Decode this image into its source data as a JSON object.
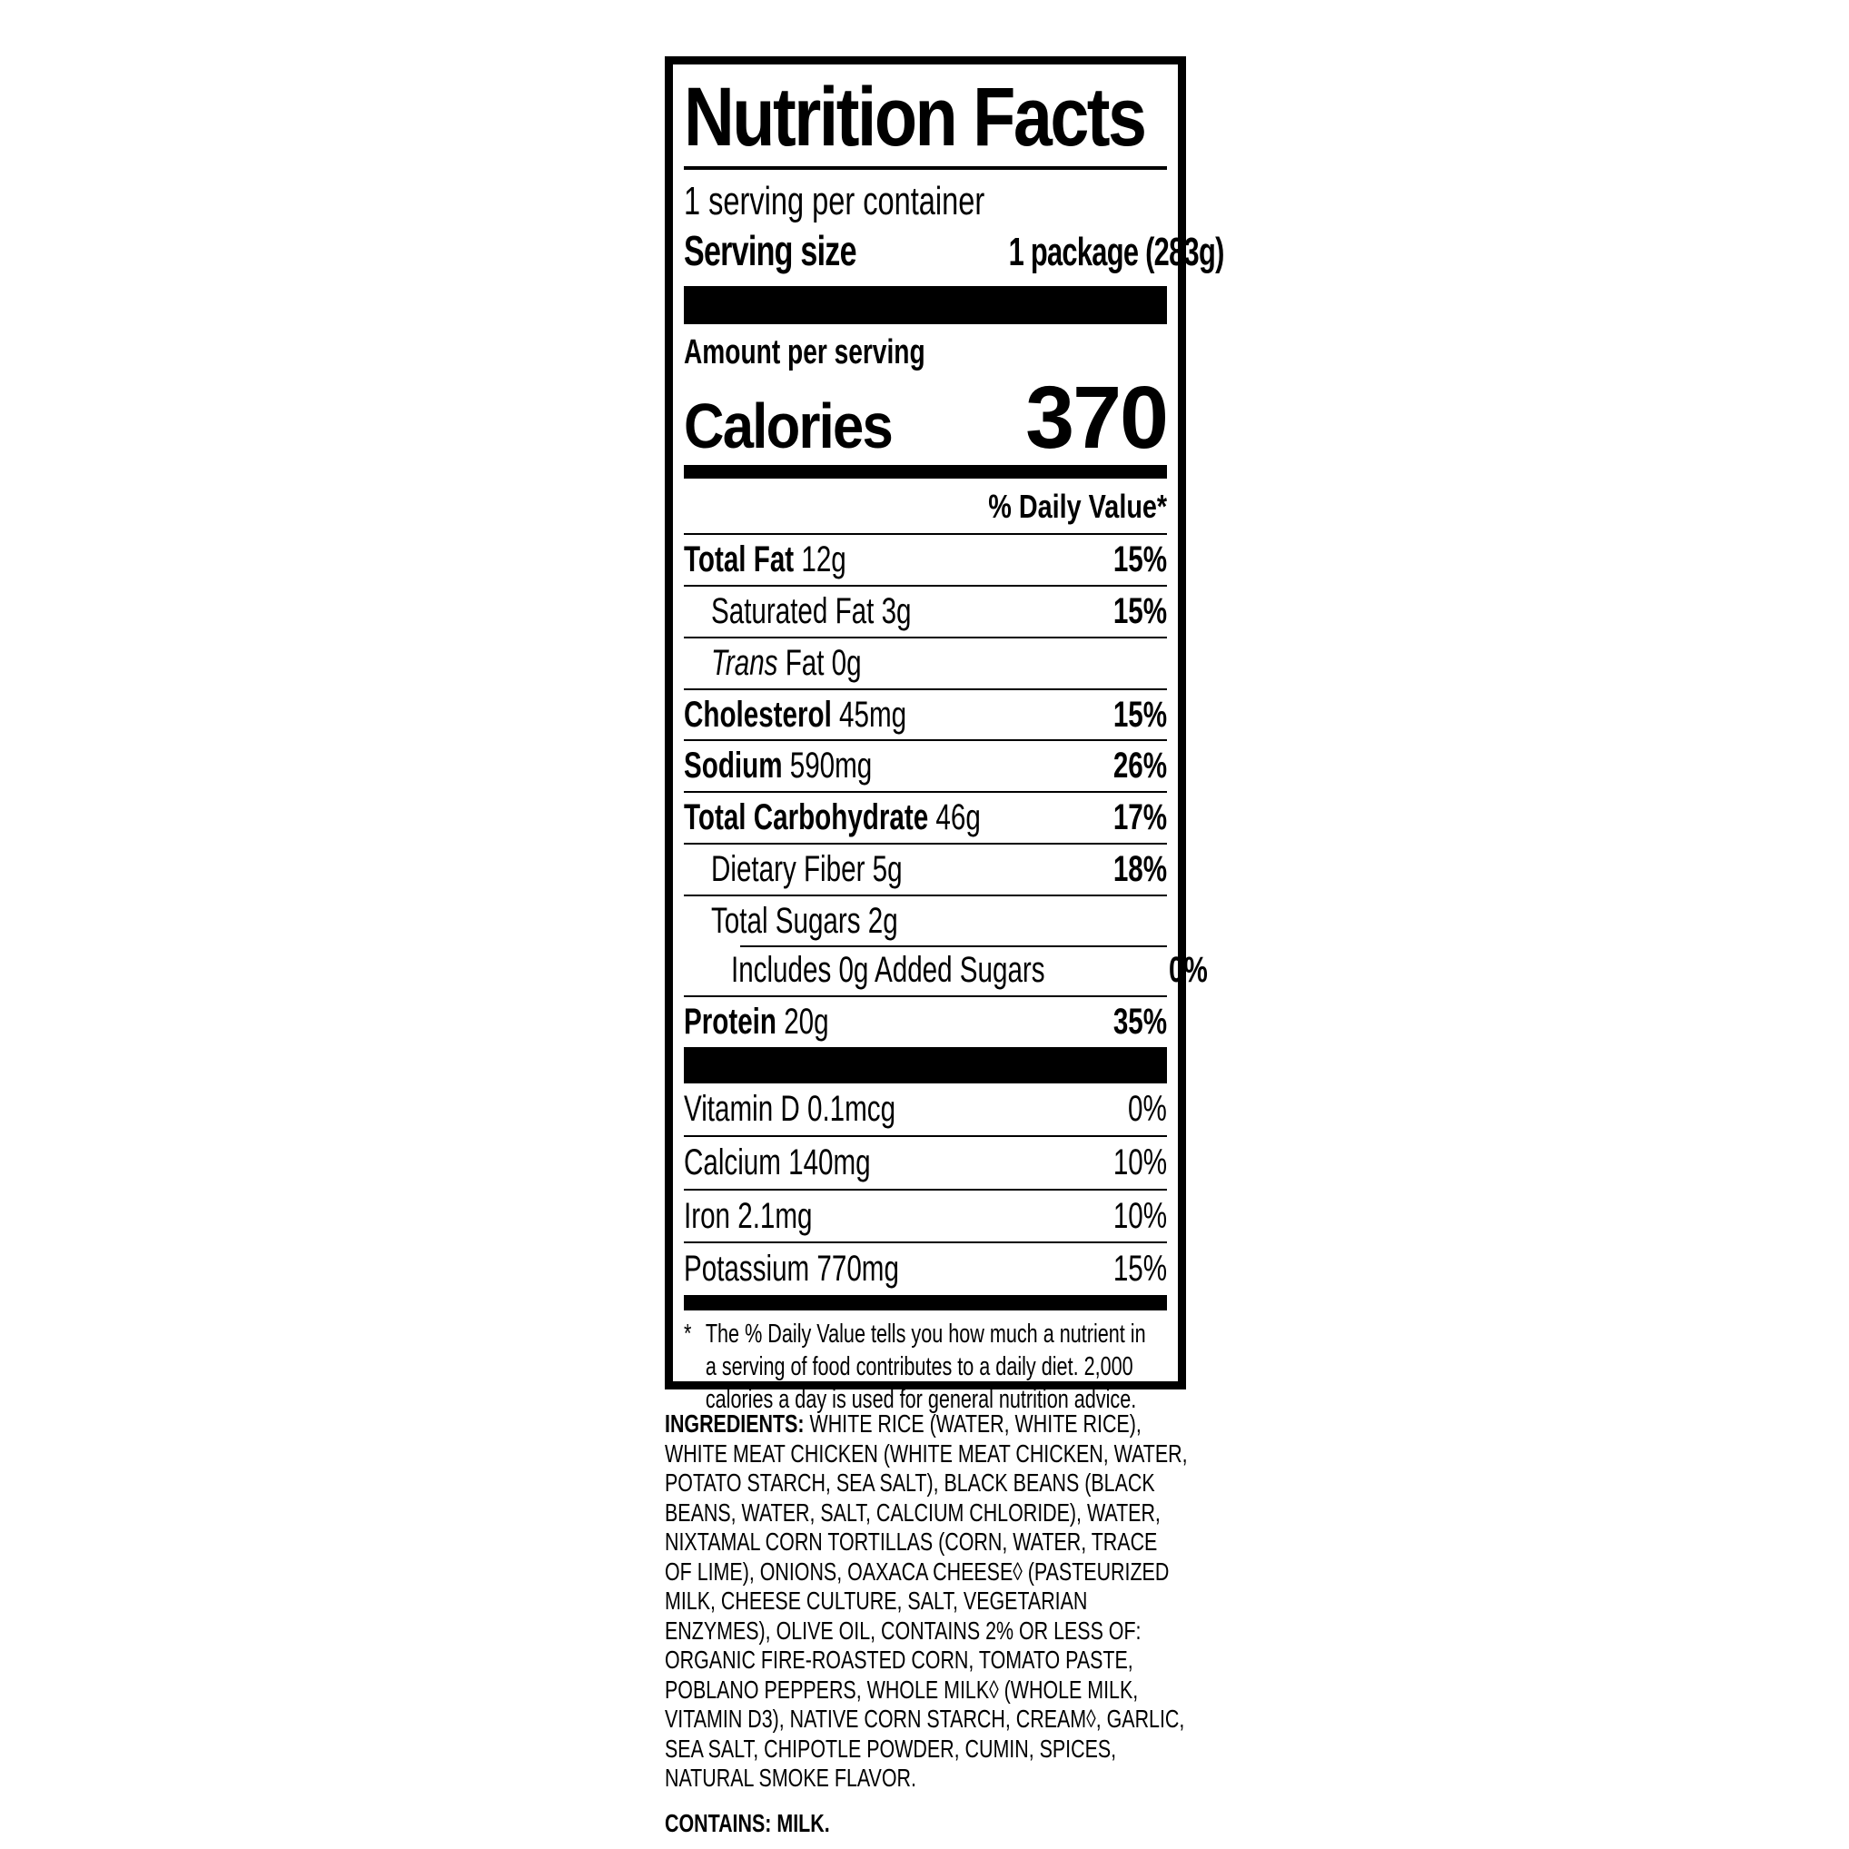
{
  "page": {
    "background": "#ffffff",
    "text_color": "#000000"
  },
  "nutrition_label": {
    "title": "Nutrition Facts",
    "servings_per_container": "1 serving per container",
    "serving_size": {
      "label": "Serving size",
      "value": "1 package (283g)"
    },
    "amount_per_serving": "Amount per serving",
    "calories": {
      "label": "Calories",
      "value": "370"
    },
    "daily_value_header": "% Daily Value*",
    "nutrient_rows": [
      {
        "bold": "Total Fat",
        "regular": " 12g",
        "dv": "15%"
      },
      {
        "bold": "",
        "regular": "Saturated Fat 3g",
        "dv": "15%"
      },
      {
        "italic": "Trans",
        "regular": " Fat 0g",
        "dv": ""
      },
      {
        "bold": "Cholesterol",
        "regular": " 45mg",
        "dv": "15%"
      },
      {
        "bold": "Sodium",
        "regular": " 590mg",
        "dv": "26%"
      },
      {
        "bold": "Total Carbohydrate",
        "regular": " 46g",
        "dv": "17%"
      },
      {
        "bold": "",
        "regular": "Dietary Fiber 5g",
        "dv": "18%"
      },
      {
        "bold": "",
        "regular": "Total Sugars 2g",
        "dv": ""
      },
      {
        "bold": "",
        "regular": "Includes 0g Added Sugars",
        "dv": "0%"
      },
      {
        "bold": "Protein",
        "regular": " 20g",
        "dv": "35%"
      }
    ],
    "vitamin_rows": [
      {
        "name": "Vitamin D 0.1mcg",
        "dv": "0%"
      },
      {
        "name": "Calcium 140mg",
        "dv": "10%"
      },
      {
        "name": "Iron 2.1mg",
        "dv": "10%"
      },
      {
        "name": "Potassium 770mg",
        "dv": "15%"
      }
    ],
    "footnote_marker": "*",
    "footnote": "The % Daily Value tells you how much a nutrient in a serving of food contributes to a daily diet. 2,000 calories a day is used for general nutrition advice."
  },
  "ingredients": {
    "label": "INGREDIENTS:",
    "text": " WHITE RICE (WATER, WHITE RICE), WHITE MEAT CHICKEN (WHITE MEAT CHICKEN, WATER, POTATO STARCH, SEA SALT), BLACK BEANS (BLACK BEANS, WATER, SALT, CALCIUM CHLORIDE), WATER, NIXTAMAL CORN TORTILLAS (CORN, WATER, TRACE OF LIME), ONIONS, OAXACA CHEESE◊ (PASTEURIZED MILK, CHEESE CULTURE, SALT, VEGETARIAN ENZYMES), OLIVE OIL, CONTAINS 2% OR LESS OF: ORGANIC FIRE-ROASTED CORN, TOMATO PASTE, POBLANO PEPPERS, WHOLE MILK◊ (WHOLE MILK, VITAMIN D3), NATIVE CORN STARCH, CREAM◊, GARLIC, SEA SALT, CHIPOTLE POWDER, CUMIN, SPICES, NATURAL SMOKE FLAVOR."
  },
  "allergen": {
    "label": "CONTAINS:",
    "text": " MILK."
  }
}
